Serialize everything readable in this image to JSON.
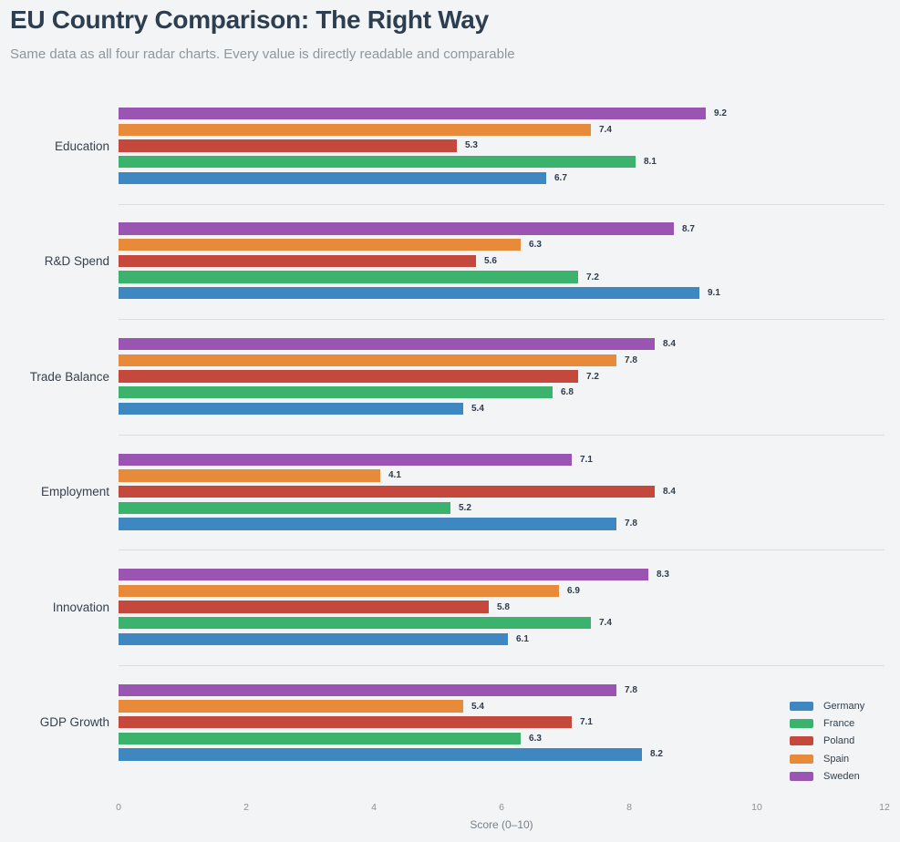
{
  "header": {
    "title": "EU Country Comparison: The Right Way",
    "subtitle": "Same data as all four radar charts. Every value is directly readable and comparable"
  },
  "chart_data": {
    "type": "bar",
    "orientation": "horizontal",
    "title": "EU Country Comparison: The Right Way",
    "subtitle": "Same data as all four radar charts. Every value is directly readable and comparable",
    "categories": [
      "Education",
      "R&D Spend",
      "Trade Balance",
      "Employment",
      "Innovation",
      "GDP Growth"
    ],
    "series": [
      {
        "name": "Germany",
        "color": "#3E87C0",
        "values": [
          6.7,
          9.1,
          5.4,
          7.8,
          6.1,
          8.2
        ]
      },
      {
        "name": "France",
        "color": "#3BB36C",
        "values": [
          8.1,
          7.2,
          6.8,
          5.2,
          7.4,
          6.3
        ]
      },
      {
        "name": "Poland",
        "color": "#C4483B",
        "values": [
          5.3,
          5.6,
          7.2,
          8.4,
          5.8,
          7.1
        ]
      },
      {
        "name": "Spain",
        "color": "#E78A39",
        "values": [
          7.4,
          6.3,
          7.8,
          4.1,
          6.9,
          5.4
        ]
      },
      {
        "name": "Sweden",
        "color": "#9A55B3",
        "values": [
          9.2,
          8.7,
          8.4,
          7.1,
          8.3,
          7.8
        ]
      }
    ],
    "bar_order_top_to_bottom": [
      "Sweden",
      "Spain",
      "Poland",
      "France",
      "Germany"
    ],
    "value_labels": true,
    "xlabel": "Score (0–10)",
    "xticks": [
      0,
      2,
      4,
      6,
      8,
      10,
      12
    ],
    "xlim": [
      0,
      12
    ],
    "grid": false,
    "legend": {
      "position": "bottom-right",
      "entries": [
        "Germany",
        "France",
        "Poland",
        "Spain",
        "Sweden"
      ]
    }
  },
  "colors": {
    "background": "#f2f4f6",
    "title": "#2d3e50",
    "subtitle": "#8e979e",
    "category_label": "#37424e",
    "value_label": "#2d3c4e",
    "tick_label": "#8b9196",
    "axis_label": "#76818b",
    "separator": "#dbdee1",
    "legend_label": "#33404c"
  }
}
